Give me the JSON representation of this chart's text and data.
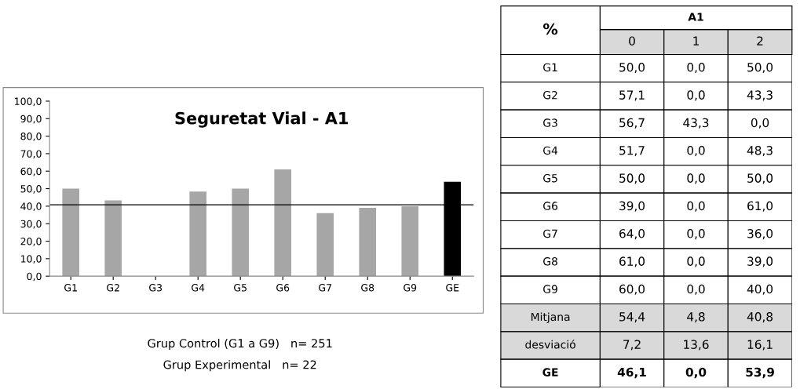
{
  "chart_data": [
    {
      "type": "bar",
      "title": "Seguretat Vial - A1",
      "categories": [
        "G1",
        "G2",
        "G3",
        "G4",
        "G5",
        "G6",
        "G7",
        "G8",
        "G9",
        "GE"
      ],
      "values": [
        50.0,
        43.3,
        0.0,
        48.3,
        50.0,
        61.0,
        36.0,
        39.0,
        40.0,
        53.9
      ],
      "colors": [
        "#a6a6a6",
        "#a6a6a6",
        "#a6a6a6",
        "#a6a6a6",
        "#a6a6a6",
        "#a6a6a6",
        "#a6a6a6",
        "#a6a6a6",
        "#a6a6a6",
        "#000000"
      ],
      "ylim": [
        0,
        100
      ],
      "yticks": [
        {
          "value": 0,
          "label": "0,0"
        },
        {
          "value": 10,
          "label": "10,0"
        },
        {
          "value": 20,
          "label": "20,0"
        },
        {
          "value": 30,
          "label": "30,0"
        },
        {
          "value": 40,
          "label": "40,0"
        },
        {
          "value": 50,
          "label": "50,0"
        },
        {
          "value": 60,
          "label": "60,0"
        },
        {
          "value": 70,
          "label": "70,0"
        },
        {
          "value": 80,
          "label": "80,0"
        },
        {
          "value": 90,
          "label": "90,0"
        },
        {
          "value": 100,
          "label": "100,0"
        }
      ],
      "ref_lines": [
        {
          "axis": "y",
          "value": 40.8,
          "color": "#000000"
        }
      ],
      "annotations": [
        "Grup Control (G1 a G9)   n= 251",
        "Grup Experimental   n= 22"
      ],
      "grid": false
    },
    {
      "type": "heatmap",
      "title": "A1",
      "ylabel": "%",
      "categories": [
        "0",
        "1",
        "2"
      ],
      "y_categories": [
        "G1",
        "G2",
        "G3",
        "G4",
        "G5",
        "G6",
        "G7",
        "G8",
        "G9",
        "Mitjana",
        "desviació",
        "GE"
      ],
      "cells": [
        [
          50.0,
          0.0,
          50.0
        ],
        [
          57.1,
          0.0,
          43.3
        ],
        [
          56.7,
          43.3,
          0.0
        ],
        [
          51.7,
          0.0,
          48.3
        ],
        [
          50.0,
          0.0,
          50.0
        ],
        [
          39.0,
          0.0,
          61.0
        ],
        [
          64.0,
          0.0,
          36.0
        ],
        [
          61.0,
          0.0,
          39.0
        ],
        [
          60.0,
          0.0,
          40.0
        ],
        [
          54.4,
          4.8,
          40.8
        ],
        [
          7.2,
          13.6,
          16.1
        ],
        [
          46.1,
          0.0,
          53.9
        ]
      ],
      "cell_labels": [
        [
          "50,0",
          "0,0",
          "50,0"
        ],
        [
          "57,1",
          "0,0",
          "43,3"
        ],
        [
          "56,7",
          "43,3",
          "0,0"
        ],
        [
          "51,7",
          "0,0",
          "48,3"
        ],
        [
          "50,0",
          "0,0",
          "50,0"
        ],
        [
          "39,0",
          "0,0",
          "61,0"
        ],
        [
          "64,0",
          "0,0",
          "36,0"
        ],
        [
          "61,0",
          "0,0",
          "39,0"
        ],
        [
          "60,0",
          "0,0",
          "40,0"
        ],
        [
          "54,4",
          "4,8",
          "40,8"
        ],
        [
          "7,2",
          "13,6",
          "16,1"
        ],
        [
          "46,1",
          "0,0",
          "53,9"
        ]
      ],
      "data_labels": true
    }
  ]
}
